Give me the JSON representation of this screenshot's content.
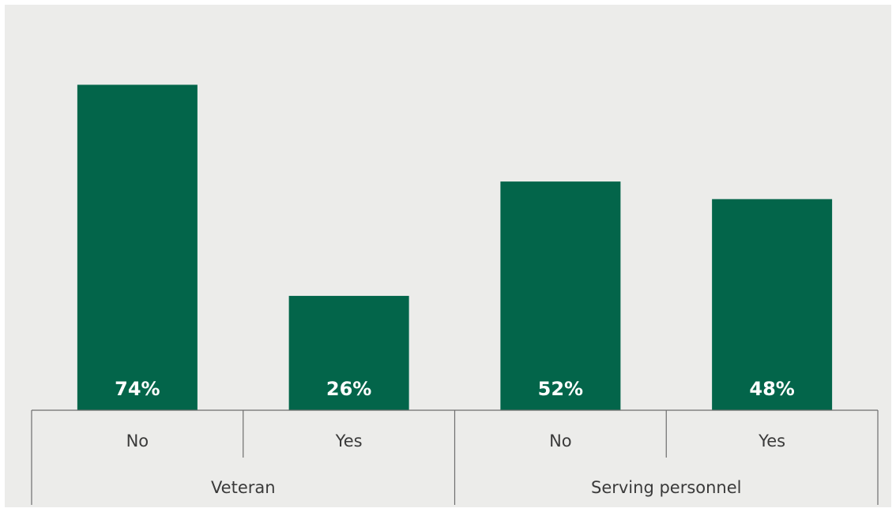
{
  "chart_data": {
    "type": "bar",
    "bar_color": "#03654a",
    "ylim": [
      0,
      80
    ],
    "grid": false,
    "groups": [
      {
        "name": "Veteran",
        "categories": [
          "No",
          "Yes"
        ],
        "values": [
          74,
          26
        ],
        "labels": [
          "74%",
          "26%"
        ]
      },
      {
        "name": "Serving personnel",
        "categories": [
          "No",
          "Yes"
        ],
        "values": [
          52,
          48
        ],
        "labels": [
          "52%",
          "48%"
        ]
      }
    ]
  }
}
